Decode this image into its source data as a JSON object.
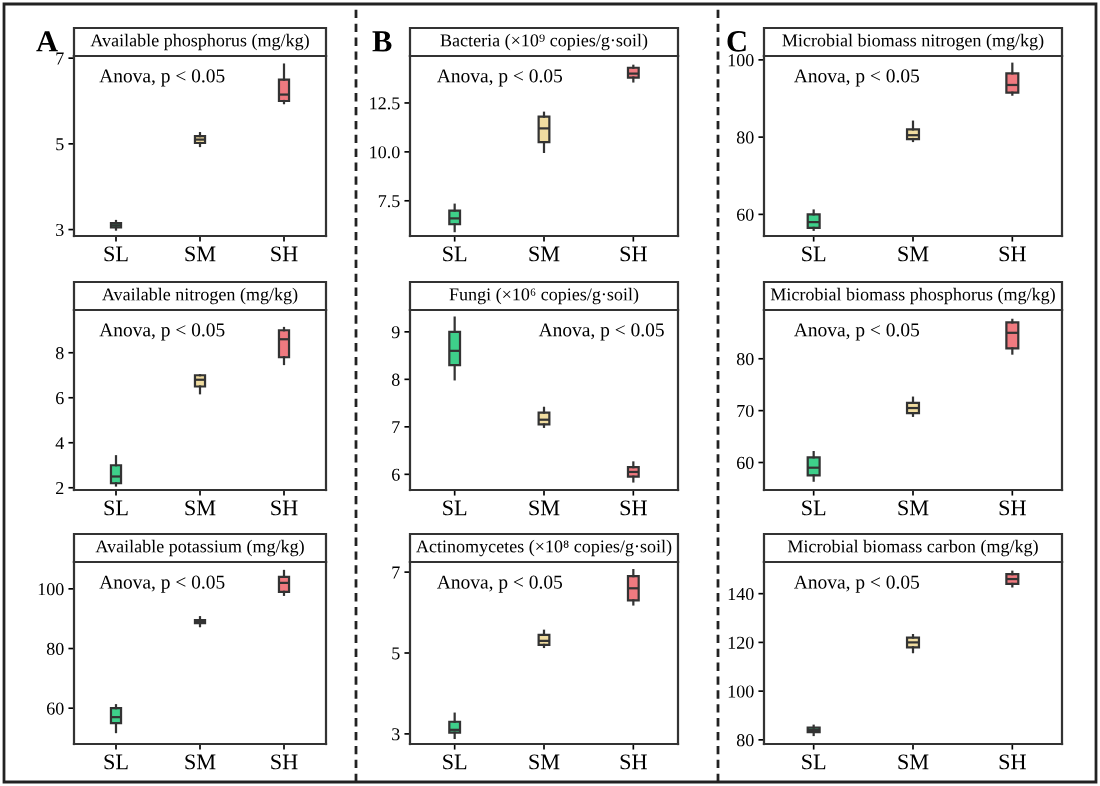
{
  "chart_data": [
    {
      "type": "box",
      "title": "Available phosphorus (mg/kg)",
      "categories": [
        "SL",
        "SM",
        "SH"
      ],
      "colors": [
        "#3ecf8a",
        "#f0dca0",
        "#f07a80"
      ],
      "ylim": [
        2.85,
        7.05
      ],
      "yticks": [
        3,
        5,
        7
      ],
      "annotations": [
        "Anova, p < 0.05",
        "A"
      ],
      "boxes": [
        {
          "low": 3.0,
          "q1": 3.05,
          "median": 3.1,
          "q3": 3.15,
          "high": 3.2
        },
        {
          "low": 4.95,
          "q1": 5.02,
          "median": 5.1,
          "q3": 5.18,
          "high": 5.25
        },
        {
          "low": 5.95,
          "q1": 6.0,
          "median": 6.15,
          "q3": 6.5,
          "high": 6.85
        }
      ]
    },
    {
      "type": "box",
      "title": "Available nitrogen (mg/kg)",
      "categories": [
        "SL",
        "SM",
        "SH"
      ],
      "colors": [
        "#3ecf8a",
        "#f0dca0",
        "#f07a80"
      ],
      "ylim": [
        1.9,
        9.9
      ],
      "yticks": [
        2,
        4,
        6,
        8
      ],
      "annotations": [
        "Anova, p < 0.05"
      ],
      "boxes": [
        {
          "low": 2.1,
          "q1": 2.2,
          "median": 2.5,
          "q3": 3.0,
          "high": 3.4
        },
        {
          "low": 6.2,
          "q1": 6.5,
          "median": 6.8,
          "q3": 7.0,
          "high": 7.0
        },
        {
          "low": 7.5,
          "q1": 7.8,
          "median": 8.6,
          "q3": 9.0,
          "high": 9.1
        }
      ]
    },
    {
      "type": "box",
      "title": "Available potassium (mg/kg)",
      "categories": [
        "SL",
        "SM",
        "SH"
      ],
      "colors": [
        "#3ecf8a",
        "#f0dca0",
        "#f07a80"
      ],
      "ylim": [
        48,
        109
      ],
      "yticks": [
        60,
        80,
        100
      ],
      "annotations": [
        "Anova, p < 0.05"
      ],
      "boxes": [
        {
          "low": 52,
          "q1": 55,
          "median": 57,
          "q3": 60,
          "high": 61
        },
        {
          "low": 87.5,
          "q1": 88.5,
          "median": 89,
          "q3": 89.5,
          "high": 90.5
        },
        {
          "low": 98,
          "q1": 99,
          "median": 102,
          "q3": 104,
          "high": 106
        }
      ]
    },
    {
      "type": "box",
      "title": "Bacteria (×10⁹ copies/g·soil)",
      "categories": [
        "SL",
        "SM",
        "SH"
      ],
      "colors": [
        "#3ecf8a",
        "#f0dca0",
        "#f07a80"
      ],
      "ylim": [
        5.7,
        14.9
      ],
      "yticks": [
        7.5,
        {
          "value": 10,
          "label": "10.0"
        },
        12.5
      ],
      "annotations": [
        "Anova, p < 0.05",
        "B"
      ],
      "boxes": [
        {
          "low": 5.95,
          "q1": 6.3,
          "median": 6.6,
          "q3": 7.0,
          "high": 7.3
        },
        {
          "low": 10.0,
          "q1": 10.5,
          "median": 11.2,
          "q3": 11.8,
          "high": 12.0
        },
        {
          "low": 13.6,
          "q1": 13.8,
          "median": 14.0,
          "q3": 14.3,
          "high": 14.4
        }
      ]
    },
    {
      "type": "box",
      "title": "Fungi (×10⁶ copies/g·soil)",
      "categories": [
        "SL",
        "SM",
        "SH"
      ],
      "colors": [
        "#3ecf8a",
        "#f0dca0",
        "#f07a80"
      ],
      "ylim": [
        5.67,
        9.46
      ],
      "yticks": [
        6,
        7,
        8,
        9
      ],
      "annotations": [
        "Anova, p < 0.05"
      ],
      "boxes": [
        {
          "low": 8.0,
          "q1": 8.3,
          "median": 8.6,
          "q3": 9.0,
          "high": 9.3
        },
        {
          "low": 7.0,
          "q1": 7.05,
          "median": 7.15,
          "q3": 7.3,
          "high": 7.4
        },
        {
          "low": 5.85,
          "q1": 5.95,
          "median": 6.05,
          "q3": 6.15,
          "high": 6.25
        }
      ]
    },
    {
      "type": "box",
      "title": "Actinomycetes (×10⁸ copies/g·soil)",
      "categories": [
        "SL",
        "SM",
        "SH"
      ],
      "colors": [
        "#3ecf8a",
        "#f0dca0",
        "#f07a80"
      ],
      "ylim": [
        2.75,
        7.25
      ],
      "yticks": [
        3,
        5,
        7
      ],
      "annotations": [
        "Anova, p < 0.05"
      ],
      "boxes": [
        {
          "low": 2.9,
          "q1": 3.03,
          "median": 3.1,
          "q3": 3.3,
          "high": 3.5
        },
        {
          "low": 5.15,
          "q1": 5.2,
          "median": 5.3,
          "q3": 5.45,
          "high": 5.55
        },
        {
          "low": 6.2,
          "q1": 6.3,
          "median": 6.6,
          "q3": 6.9,
          "high": 7.05
        }
      ]
    },
    {
      "type": "box",
      "title": "Microbial biomass nitrogen (mg/kg)",
      "categories": [
        "SL",
        "SM",
        "SH"
      ],
      "colors": [
        "#3ecf8a",
        "#f0dca0",
        "#f07a80"
      ],
      "ylim": [
        54.4,
        101
      ],
      "yticks": [
        60,
        80,
        100
      ],
      "annotations": [
        "Anova, p < 0.05",
        "C"
      ],
      "boxes": [
        {
          "low": 56,
          "q1": 56.5,
          "median": 58,
          "q3": 60,
          "high": 61
        },
        {
          "low": 79,
          "q1": 79.5,
          "median": 80.5,
          "q3": 82,
          "high": 84
        },
        {
          "low": 91,
          "q1": 91.5,
          "median": 93.5,
          "q3": 96.5,
          "high": 99
        }
      ]
    },
    {
      "type": "box",
      "title": "Microbial biomass phosphorus (mg/kg)",
      "categories": [
        "SL",
        "SM",
        "SH"
      ],
      "colors": [
        "#3ecf8a",
        "#f0dca0",
        "#f07a80"
      ],
      "ylim": [
        54.7,
        89.4
      ],
      "yticks": [
        60,
        70,
        80
      ],
      "annotations": [
        "Anova, p < 0.05"
      ],
      "boxes": [
        {
          "low": 56.5,
          "q1": 57.5,
          "median": 59,
          "q3": 61,
          "high": 62
        },
        {
          "low": 69,
          "q1": 69.5,
          "median": 70.5,
          "q3": 71.5,
          "high": 72.5
        },
        {
          "low": 81,
          "q1": 82,
          "median": 85,
          "q3": 87,
          "high": 87.5
        }
      ]
    },
    {
      "type": "box",
      "title": "Microbial biomass carbon (mg/kg)",
      "categories": [
        "SL",
        "SM",
        "SH"
      ],
      "colors": [
        "#3ecf8a",
        "#f0dca0",
        "#f07a80"
      ],
      "ylim": [
        78.3,
        153
      ],
      "yticks": [
        80,
        100,
        120,
        140
      ],
      "annotations": [
        "Anova, p < 0.05"
      ],
      "boxes": [
        {
          "low": 82,
          "q1": 83.2,
          "median": 84,
          "q3": 85,
          "high": 85.8
        },
        {
          "low": 116,
          "q1": 118,
          "median": 120,
          "q3": 122,
          "high": 123
        },
        {
          "low": 143,
          "q1": 144,
          "median": 146,
          "q3": 148,
          "high": 149
        }
      ]
    }
  ]
}
